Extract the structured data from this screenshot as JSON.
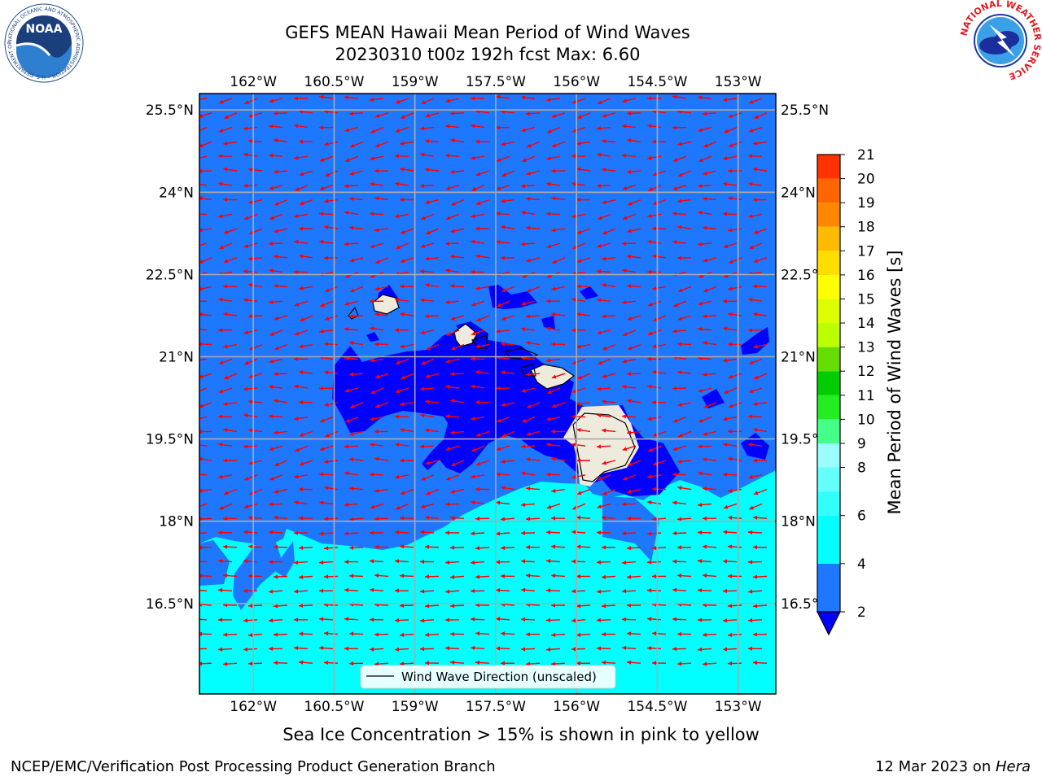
{
  "header": {
    "title_line1": "GEFS MEAN Hawaii Mean Period of Wind Waves",
    "title_line2": "20230310 t00z 192h fcst   Max: 6.60"
  },
  "logos": {
    "left": "NOAA",
    "left_ring_text": "NATIONAL OCEANIC AND ATMOSPHERIC ADMINISTRATION • U.S. DEPARTMENT OF COMMERCE",
    "right_ring_text": "NATIONAL WEATHER SERVICE"
  },
  "legend": {
    "label": "Wind Wave Direction (unscaled)"
  },
  "caption": "Sea Ice Concentration > 15% is shown in pink to yellow",
  "footer": {
    "left": "NCEP/EMC/Verification Post Processing Product Generation Branch",
    "date": "12 Mar 2023 on ",
    "machine": "Hera"
  },
  "chart_data": {
    "type": "heatmap",
    "title": "GEFS MEAN Hawaii Mean Period of Wind Waves",
    "subtitle": "20230310 t00z 192h fcst   Max: 6.60",
    "max_value": 6.6,
    "x_ticks": [
      {
        "value": -162.0,
        "label": "162°W"
      },
      {
        "value": -160.5,
        "label": "160.5°W"
      },
      {
        "value": -159.0,
        "label": "159°W"
      },
      {
        "value": -157.5,
        "label": "157.5°W"
      },
      {
        "value": -156.0,
        "label": "156°W"
      },
      {
        "value": -154.5,
        "label": "154.5°W"
      },
      {
        "value": -153.0,
        "label": "153°W"
      }
    ],
    "y_ticks": [
      {
        "value": 25.5,
        "label": "25.5°N"
      },
      {
        "value": 24.0,
        "label": "24°N"
      },
      {
        "value": 22.5,
        "label": "22.5°N"
      },
      {
        "value": 21.0,
        "label": "21°N"
      },
      {
        "value": 19.5,
        "label": "19.5°N"
      },
      {
        "value": 18.0,
        "label": "18°N"
      },
      {
        "value": 16.5,
        "label": "16.5°N"
      }
    ],
    "xlim": [
      -163.0,
      -152.3
    ],
    "ylim": [
      14.85,
      25.8
    ],
    "grid": true,
    "colorbar": {
      "label": "Mean Period of Wind Waves [s]",
      "ticks": [
        2,
        4,
        6,
        8,
        9,
        10,
        11,
        12,
        13,
        14,
        15,
        16,
        17,
        18,
        19,
        20,
        21
      ],
      "bounds": [
        2,
        4,
        6,
        7,
        8,
        9,
        10,
        11,
        12,
        13,
        14,
        15,
        16,
        17,
        18,
        19,
        20,
        21
      ],
      "colors": [
        "#1e78ff",
        "#00ffff",
        "#33ffff",
        "#66ffff",
        "#99ffff",
        "#44ff88",
        "#22ee22",
        "#00cc00",
        "#66dd00",
        "#bbff00",
        "#ddff00",
        "#ffff00",
        "#ffdd00",
        "#ffbb00",
        "#ff8800",
        "#ff6600",
        "#ff3300",
        "#ff0000"
      ],
      "extend_min_color": "#0000ff"
    },
    "colors": {
      "band_lt2": "#0000ff",
      "band_2_4": "#1e78ff",
      "band_4_6": "#00ffff",
      "land": "#eeebdd",
      "arrows": "#ff0000",
      "grid": "#aaaaaa"
    },
    "legend": "Wind Wave Direction (unscaled)",
    "legend_position": "bottom-center",
    "arrow_direction": "westward"
  }
}
